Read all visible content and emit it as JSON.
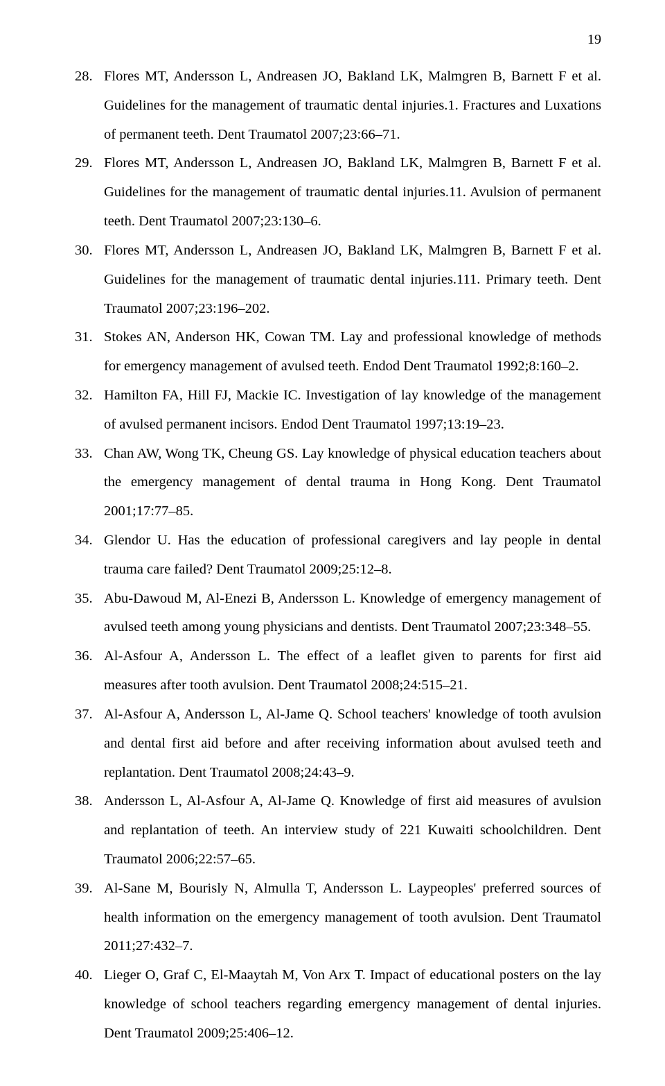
{
  "page_number": "19",
  "font": {
    "family": "Times New Roman",
    "body_size_pt": 12,
    "line_height": 2.0,
    "color": "#000000",
    "background": "#ffffff"
  },
  "references": [
    {
      "num": "28.",
      "text": "Flores MT, Andersson L, Andreasen JO, Bakland LK, Malmgren B, Barnett F et al. Guidelines for the management of traumatic dental injuries.1. Fractures and Luxations of permanent teeth. Dent Traumatol 2007;23:66–71."
    },
    {
      "num": "29.",
      "text": "Flores MT, Andersson L, Andreasen JO, Bakland LK, Malmgren B, Barnett F et al. Guidelines for the management of traumatic dental injuries.11. Avulsion of permanent teeth. Dent Traumatol 2007;23:130–6."
    },
    {
      "num": "30.",
      "text": "Flores MT, Andersson L, Andreasen JO, Bakland LK, Malmgren B, Barnett F et al. Guidelines for the management of traumatic dental injuries.111. Primary teeth. Dent Traumatol 2007;23:196–202."
    },
    {
      "num": "31.",
      "text": "Stokes AN, Anderson HK, Cowan TM. Lay and professional knowledge of methods for emergency management of avulsed teeth. Endod Dent Traumatol 1992;8:160–2."
    },
    {
      "num": "32.",
      "text": "Hamilton FA, Hill FJ, Mackie IC. Investigation of lay knowledge of the management of avulsed permanent incisors. Endod Dent Traumatol 1997;13:19–23."
    },
    {
      "num": "33.",
      "text": "Chan AW, Wong TK, Cheung GS. Lay knowledge of physical education teachers about the emergency management of dental trauma in Hong Kong. Dent Traumatol 2001;17:77–85."
    },
    {
      "num": "34.",
      "text": "Glendor U. Has the education of professional caregivers and lay people in dental trauma care failed? Dent Traumatol 2009;25:12–8."
    },
    {
      "num": "35.",
      "text": "Abu-Dawoud M, Al-Enezi B, Andersson L. Knowledge of emergency management of avulsed teeth among young physicians and dentists. Dent Traumatol 2007;23:348–55."
    },
    {
      "num": "36.",
      "text": "Al-Asfour A, Andersson L. The effect of a leaflet given to parents for first aid measures after tooth avulsion. Dent Traumatol 2008;24:515–21."
    },
    {
      "num": "37.",
      "text": "Al-Asfour A, Andersson L, Al-Jame Q. School teachers' knowledge of tooth avulsion and dental first aid before and after receiving information about avulsed teeth and replantation. Dent Traumatol 2008;24:43–9."
    },
    {
      "num": "38.",
      "text": "Andersson L, Al-Asfour A, Al-Jame Q. Knowledge of first aid measures of avulsion and replantation of teeth. An interview study of 221 Kuwaiti schoolchildren. Dent Traumatol 2006;22:57–65."
    },
    {
      "num": "39.",
      "text": "Al-Sane M, Bourisly N, Almulla T, Andersson L. Laypeoples' preferred sources of health information on the emergency management of tooth avulsion. Dent Traumatol 2011;27:432–7."
    },
    {
      "num": "40.",
      "text": "Lieger O, Graf C, El-Maaytah M, Von Arx T. Impact of educational posters on the lay knowledge of school teachers regarding emergency management of dental injuries. Dent Traumatol 2009;25:406–12."
    }
  ]
}
